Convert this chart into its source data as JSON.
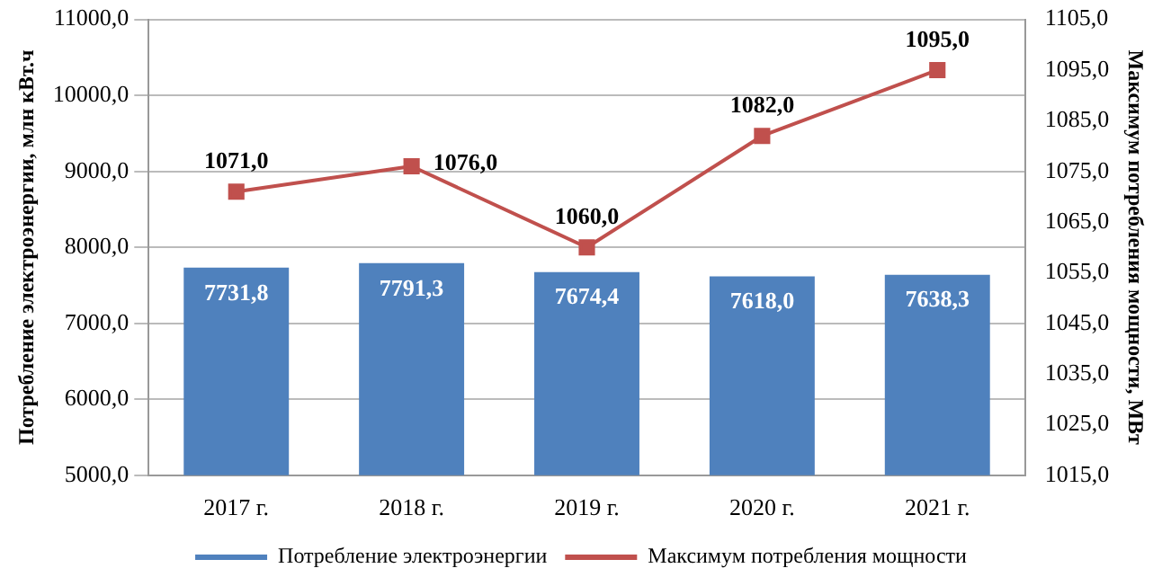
{
  "chart_data": {
    "type": "bar",
    "ylabel": "Потребление электроэнергии, млн кВт.ч",
    "y2label": "Максимум потребления мощности, МВт",
    "categories": [
      "2017 г.",
      "2018 г.",
      "2019 г.",
      "2020 г.",
      "2021 г."
    ],
    "series": [
      {
        "name": "Потребление электроэнергии",
        "color": "#4f81bd",
        "values": [
          7731.8,
          7791.3,
          7674.4,
          7618.0,
          7638.3
        ],
        "value_labels": [
          "7731,8",
          "7791,3",
          "7674,4",
          "7618,0",
          "7638,3"
        ]
      },
      {
        "name": "Максимум потребления мощности",
        "type": "line",
        "axis": "y2",
        "color": "#c0504d",
        "marker": "square",
        "values": [
          1071.0,
          1076.0,
          1060.0,
          1082.0,
          1095.0
        ],
        "value_labels": [
          "1071,0",
          "1076,0",
          "1060,0",
          "1082,0",
          "1095,0"
        ]
      }
    ],
    "ylim": [
      5000,
      11000
    ],
    "yticks": [
      {
        "value": 5000,
        "label": "5000,0"
      },
      {
        "value": 6000,
        "label": "6000,0"
      },
      {
        "value": 7000,
        "label": "7000,0"
      },
      {
        "value": 8000,
        "label": "8000,0"
      },
      {
        "value": 9000,
        "label": "9000,0"
      },
      {
        "value": 10000,
        "label": "10000,0"
      },
      {
        "value": 11000,
        "label": "11000,0"
      }
    ],
    "y2lim": [
      1015,
      1105
    ],
    "y2ticks": [
      {
        "value": 1015,
        "label": "1015,0"
      },
      {
        "value": 1025,
        "label": "1025,0"
      },
      {
        "value": 1035,
        "label": "1035,0"
      },
      {
        "value": 1045,
        "label": "1045,0"
      },
      {
        "value": 1055,
        "label": "1055,0"
      },
      {
        "value": 1065,
        "label": "1065,0"
      },
      {
        "value": 1075,
        "label": "1075,0"
      },
      {
        "value": 1085,
        "label": "1085,0"
      },
      {
        "value": 1095,
        "label": "1095,0"
      },
      {
        "value": 1105,
        "label": "1105,0"
      }
    ],
    "grid": "y",
    "legend": "bottom"
  }
}
